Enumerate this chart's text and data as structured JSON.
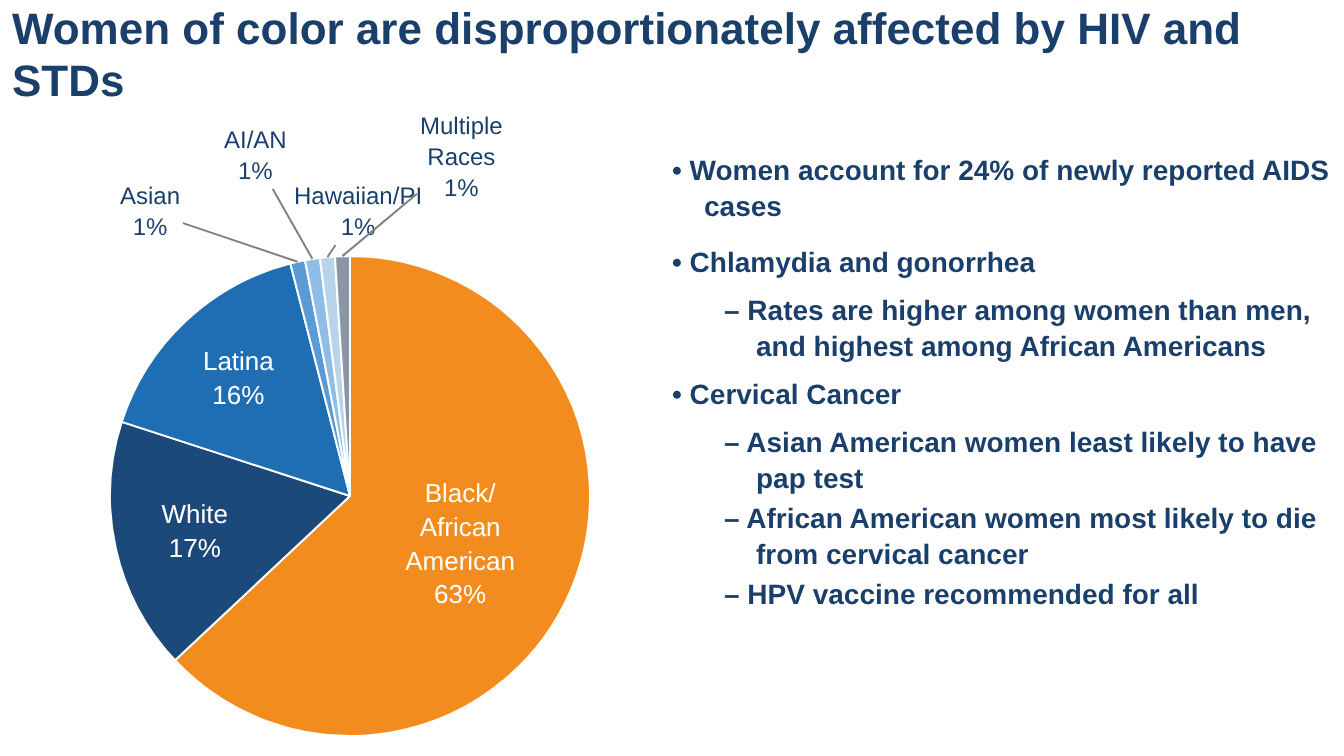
{
  "chart_data": {
    "type": "pie",
    "title": "Women of color are disproportionately affected by HIV and STDs",
    "categories": [
      "Black/African American",
      "White",
      "Latina",
      "Asian",
      "AI/AN",
      "Hawaiian/PI",
      "Multiple Races"
    ],
    "values": [
      63,
      17,
      16,
      1,
      1,
      1,
      1
    ],
    "value_labels": [
      "63%",
      "17%",
      "16%",
      "1%",
      "1%",
      "1%",
      "1%"
    ],
    "colors": [
      "#f28c1e",
      "#1b4a7a",
      "#1f6db3",
      "#5b9bd5",
      "#8fbde6",
      "#b8d4ea",
      "#8a96a8"
    ],
    "annotations": [
      "• Women account for 24% of newly reported AIDS cases",
      "• Chlamydia and gonorrhea",
      "– Rates are higher among women than men, and highest among African Americans",
      "• Cervical Cancer",
      "– Asian American women least likely to have pap test",
      "– African American women most likely to die from cervical cancer",
      "– HPV vaccine recommended for all"
    ]
  }
}
